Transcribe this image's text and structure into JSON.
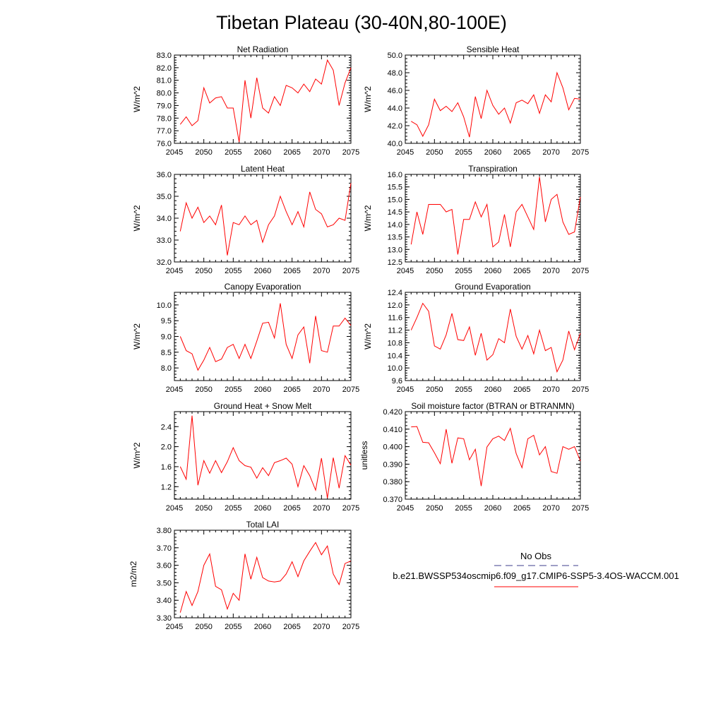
{
  "figure": {
    "title": "Tibetan Plateau (30-40N,80-100E)"
  },
  "colors": {
    "series": "#ff0000",
    "obs": "#3c3c8c",
    "axis": "#000000"
  },
  "legend": {
    "obs_label": "No Obs",
    "model_label": "b.e21.BWSSP534oscmip6.f09_g17.CMIP6-SSP5-3.4OS-WACCM.001"
  },
  "chart_data": [
    {
      "type": "line",
      "title": "Net Radiation",
      "ylabel": "W/m^2",
      "xlim": [
        2045,
        2075
      ],
      "ylim": [
        76.0,
        83.0
      ],
      "xticks": [
        2045,
        2050,
        2055,
        2060,
        2065,
        2070,
        2075
      ],
      "yticks": [
        76.0,
        77.0,
        78.0,
        79.0,
        80.0,
        81.0,
        82.0,
        83.0
      ],
      "ytick_labels": [
        "76.0",
        "77.0",
        "78.0",
        "79.0",
        "80.0",
        "81.0",
        "82.0",
        "83.0"
      ],
      "x": [
        2046,
        2047,
        2048,
        2049,
        2050,
        2051,
        2052,
        2053,
        2054,
        2055,
        2056,
        2057,
        2058,
        2059,
        2060,
        2061,
        2062,
        2063,
        2064,
        2065,
        2066,
        2067,
        2068,
        2069,
        2070,
        2071,
        2072,
        2073,
        2074,
        2075
      ],
      "y": [
        77.5,
        78.1,
        77.4,
        77.8,
        80.4,
        79.2,
        79.6,
        79.7,
        78.8,
        78.8,
        76.1,
        81.0,
        78.0,
        81.2,
        78.8,
        78.4,
        79.7,
        79.0,
        80.6,
        80.4,
        80.0,
        80.7,
        80.1,
        81.1,
        80.7,
        82.6,
        81.8,
        79.0,
        80.8,
        82.0
      ]
    },
    {
      "type": "line",
      "title": "Sensible Heat",
      "ylabel": "W/m^2",
      "xlim": [
        2045,
        2075
      ],
      "ylim": [
        40.0,
        50.0
      ],
      "xticks": [
        2045,
        2050,
        2055,
        2060,
        2065,
        2070,
        2075
      ],
      "yticks": [
        40.0,
        42.0,
        44.0,
        46.0,
        48.0,
        50.0
      ],
      "ytick_labels": [
        "40.0",
        "42.0",
        "44.0",
        "46.0",
        "48.0",
        "50.0"
      ],
      "x": [
        2046,
        2047,
        2048,
        2049,
        2050,
        2051,
        2052,
        2053,
        2054,
        2055,
        2056,
        2057,
        2058,
        2059,
        2060,
        2061,
        2062,
        2063,
        2064,
        2065,
        2066,
        2067,
        2068,
        2069,
        2070,
        2071,
        2072,
        2073,
        2074,
        2075
      ],
      "y": [
        42.5,
        42.1,
        40.8,
        42.1,
        45.0,
        43.7,
        44.2,
        43.6,
        44.6,
        43.0,
        40.7,
        45.3,
        42.8,
        46.0,
        44.3,
        43.3,
        44.0,
        42.3,
        44.6,
        44.9,
        44.5,
        45.5,
        43.4,
        45.5,
        44.7,
        48.0,
        46.3,
        43.8,
        45.1,
        45.0
      ]
    },
    {
      "type": "line",
      "title": "Latent Heat",
      "ylabel": "W/m^2",
      "xlim": [
        2045,
        2075
      ],
      "ylim": [
        32.0,
        36.0
      ],
      "xticks": [
        2045,
        2050,
        2055,
        2060,
        2065,
        2070,
        2075
      ],
      "yticks": [
        32.0,
        33.0,
        34.0,
        35.0,
        36.0
      ],
      "ytick_labels": [
        "32.0",
        "33.0",
        "34.0",
        "35.0",
        "36.0"
      ],
      "x": [
        2046,
        2047,
        2048,
        2049,
        2050,
        2051,
        2052,
        2053,
        2054,
        2055,
        2056,
        2057,
        2058,
        2059,
        2060,
        2061,
        2062,
        2063,
        2064,
        2065,
        2066,
        2067,
        2068,
        2069,
        2070,
        2071,
        2072,
        2073,
        2074,
        2075
      ],
      "y": [
        33.4,
        34.7,
        34.0,
        34.5,
        33.8,
        34.1,
        33.7,
        34.6,
        32.3,
        33.8,
        33.7,
        34.1,
        33.7,
        33.9,
        32.9,
        33.7,
        34.1,
        35.0,
        34.3,
        33.7,
        34.3,
        33.6,
        35.2,
        34.4,
        34.2,
        33.6,
        33.7,
        34.0,
        33.9,
        35.6
      ]
    },
    {
      "type": "line",
      "title": "Transpiration",
      "ylabel": "W/m^2",
      "xlim": [
        2045,
        2075
      ],
      "ylim": [
        12.5,
        16.0
      ],
      "xticks": [
        2045,
        2050,
        2055,
        2060,
        2065,
        2070,
        2075
      ],
      "yticks": [
        12.5,
        13.0,
        13.5,
        14.0,
        14.5,
        15.0,
        15.5,
        16.0
      ],
      "ytick_labels": [
        "12.5",
        "13.0",
        "13.5",
        "14.0",
        "14.5",
        "15.0",
        "15.5",
        "16.0"
      ],
      "x": [
        2046,
        2047,
        2048,
        2049,
        2050,
        2051,
        2052,
        2053,
        2054,
        2055,
        2056,
        2057,
        2058,
        2059,
        2060,
        2061,
        2062,
        2063,
        2064,
        2065,
        2066,
        2067,
        2068,
        2069,
        2070,
        2071,
        2072,
        2073,
        2074,
        2075
      ],
      "y": [
        13.2,
        14.5,
        13.6,
        14.8,
        14.8,
        14.8,
        14.5,
        14.6,
        12.8,
        14.2,
        14.2,
        14.9,
        14.3,
        14.8,
        13.1,
        13.3,
        14.4,
        13.1,
        14.5,
        14.8,
        14.3,
        13.8,
        15.9,
        14.1,
        15.0,
        15.2,
        14.1,
        13.6,
        13.7,
        15.1
      ]
    },
    {
      "type": "line",
      "title": "Canopy Evaporation",
      "ylabel": "W/m^2",
      "xlim": [
        2045,
        2075
      ],
      "ylim": [
        7.6,
        10.4
      ],
      "xticks": [
        2045,
        2050,
        2055,
        2060,
        2065,
        2070,
        2075
      ],
      "yticks": [
        8.0,
        8.5,
        9.0,
        9.5,
        10.0
      ],
      "ytick_labels": [
        "8.0",
        "8.5",
        "9.0",
        "9.5",
        "10.0"
      ],
      "x": [
        2046,
        2047,
        2048,
        2049,
        2050,
        2051,
        2052,
        2053,
        2054,
        2055,
        2056,
        2057,
        2058,
        2059,
        2060,
        2061,
        2062,
        2063,
        2064,
        2065,
        2066,
        2067,
        2068,
        2069,
        2070,
        2071,
        2072,
        2073,
        2074,
        2075
      ],
      "y": [
        9.0,
        8.55,
        8.45,
        7.93,
        8.25,
        8.65,
        8.2,
        8.28,
        8.65,
        8.75,
        8.3,
        8.75,
        8.3,
        8.85,
        9.42,
        9.45,
        8.95,
        10.05,
        8.75,
        8.3,
        9.05,
        9.3,
        8.15,
        9.65,
        8.55,
        8.5,
        9.33,
        9.33,
        9.58,
        9.35
      ]
    },
    {
      "type": "line",
      "title": "Ground Evaporation",
      "ylabel": "W/m^2",
      "xlim": [
        2045,
        2075
      ],
      "ylim": [
        9.6,
        12.4
      ],
      "xticks": [
        2045,
        2050,
        2055,
        2060,
        2065,
        2070,
        2075
      ],
      "yticks": [
        9.6,
        10.0,
        10.4,
        10.8,
        11.2,
        11.6,
        12.0,
        12.4
      ],
      "ytick_labels": [
        "9.6",
        "10.0",
        "10.4",
        "10.8",
        "11.2",
        "11.6",
        "12.0",
        "12.4"
      ],
      "x": [
        2046,
        2047,
        2048,
        2049,
        2050,
        2051,
        2052,
        2053,
        2054,
        2055,
        2056,
        2057,
        2058,
        2059,
        2060,
        2061,
        2062,
        2063,
        2064,
        2065,
        2066,
        2067,
        2068,
        2069,
        2070,
        2071,
        2072,
        2073,
        2074,
        2075
      ],
      "y": [
        11.2,
        11.6,
        12.05,
        11.8,
        10.7,
        10.6,
        11.05,
        11.73,
        10.9,
        10.87,
        11.3,
        10.4,
        11.1,
        10.25,
        10.42,
        10.93,
        10.8,
        11.87,
        11.0,
        10.6,
        11.03,
        10.45,
        11.2,
        10.55,
        10.65,
        9.88,
        10.25,
        11.17,
        10.58,
        11.1
      ]
    },
    {
      "type": "line",
      "title": "Ground Heat + Snow Melt",
      "ylabel": "W/m^2",
      "xlim": [
        2045,
        2075
      ],
      "ylim": [
        0.95,
        2.7
      ],
      "xticks": [
        2045,
        2050,
        2055,
        2060,
        2065,
        2070,
        2075
      ],
      "yticks": [
        1.2,
        1.6,
        2.0,
        2.4
      ],
      "ytick_labels": [
        "1.2",
        "1.6",
        "2.0",
        "2.4"
      ],
      "x": [
        2046,
        2047,
        2048,
        2049,
        2050,
        2051,
        2052,
        2053,
        2054,
        2055,
        2056,
        2057,
        2058,
        2059,
        2060,
        2061,
        2062,
        2063,
        2064,
        2065,
        2066,
        2067,
        2068,
        2069,
        2070,
        2071,
        2072,
        2073,
        2074,
        2075
      ],
      "y": [
        1.6,
        1.35,
        2.62,
        1.23,
        1.72,
        1.47,
        1.72,
        1.48,
        1.7,
        1.98,
        1.72,
        1.62,
        1.59,
        1.37,
        1.58,
        1.42,
        1.68,
        1.72,
        1.77,
        1.65,
        1.2,
        1.62,
        1.42,
        1.13,
        1.77,
        0.97,
        1.78,
        1.17,
        1.82,
        1.63
      ]
    },
    {
      "type": "line",
      "title": "Soil moisture factor (BTRAN or BTRANMN)",
      "ylabel": "unitless",
      "xlim": [
        2045,
        2075
      ],
      "ylim": [
        0.37,
        0.42
      ],
      "xticks": [
        2045,
        2050,
        2055,
        2060,
        2065,
        2070,
        2075
      ],
      "yticks": [
        0.37,
        0.38,
        0.39,
        0.4,
        0.41,
        0.42
      ],
      "ytick_labels": [
        "0.370",
        "0.380",
        "0.390",
        "0.400",
        "0.410",
        "0.420"
      ],
      "x": [
        2046,
        2047,
        2048,
        2049,
        2050,
        2051,
        2052,
        2053,
        2054,
        2055,
        2056,
        2057,
        2058,
        2059,
        2060,
        2061,
        2062,
        2063,
        2064,
        2065,
        2066,
        2067,
        2068,
        2069,
        2070,
        2071,
        2072,
        2073,
        2074,
        2075
      ],
      "y": [
        0.4113,
        0.4115,
        0.4025,
        0.4022,
        0.3965,
        0.3903,
        0.41,
        0.3905,
        0.405,
        0.4045,
        0.3925,
        0.3985,
        0.3775,
        0.3998,
        0.4045,
        0.406,
        0.4035,
        0.4105,
        0.396,
        0.388,
        0.4045,
        0.4065,
        0.3953,
        0.4,
        0.3858,
        0.3848,
        0.4,
        0.3985,
        0.4,
        0.3918
      ]
    },
    {
      "type": "line",
      "title": "Total LAI",
      "ylabel": "m2/m2",
      "xlim": [
        2045,
        2075
      ],
      "ylim": [
        3.3,
        3.8
      ],
      "xticks": [
        2045,
        2050,
        2055,
        2060,
        2065,
        2070,
        2075
      ],
      "yticks": [
        3.3,
        3.4,
        3.5,
        3.6,
        3.7,
        3.8
      ],
      "ytick_labels": [
        "3.30",
        "3.40",
        "3.50",
        "3.60",
        "3.70",
        "3.80"
      ],
      "x": [
        2046,
        2047,
        2048,
        2049,
        2050,
        2051,
        2052,
        2053,
        2054,
        2055,
        2056,
        2057,
        2058,
        2059,
        2060,
        2061,
        2062,
        2063,
        2064,
        2065,
        2066,
        2067,
        2068,
        2069,
        2070,
        2071,
        2072,
        2073,
        2074,
        2075
      ],
      "y": [
        3.33,
        3.45,
        3.37,
        3.45,
        3.6,
        3.665,
        3.48,
        3.46,
        3.35,
        3.44,
        3.4,
        3.665,
        3.52,
        3.645,
        3.53,
        3.51,
        3.505,
        3.51,
        3.55,
        3.62,
        3.535,
        3.625,
        3.68,
        3.73,
        3.66,
        3.71,
        3.55,
        3.49,
        3.61,
        3.625
      ]
    }
  ]
}
